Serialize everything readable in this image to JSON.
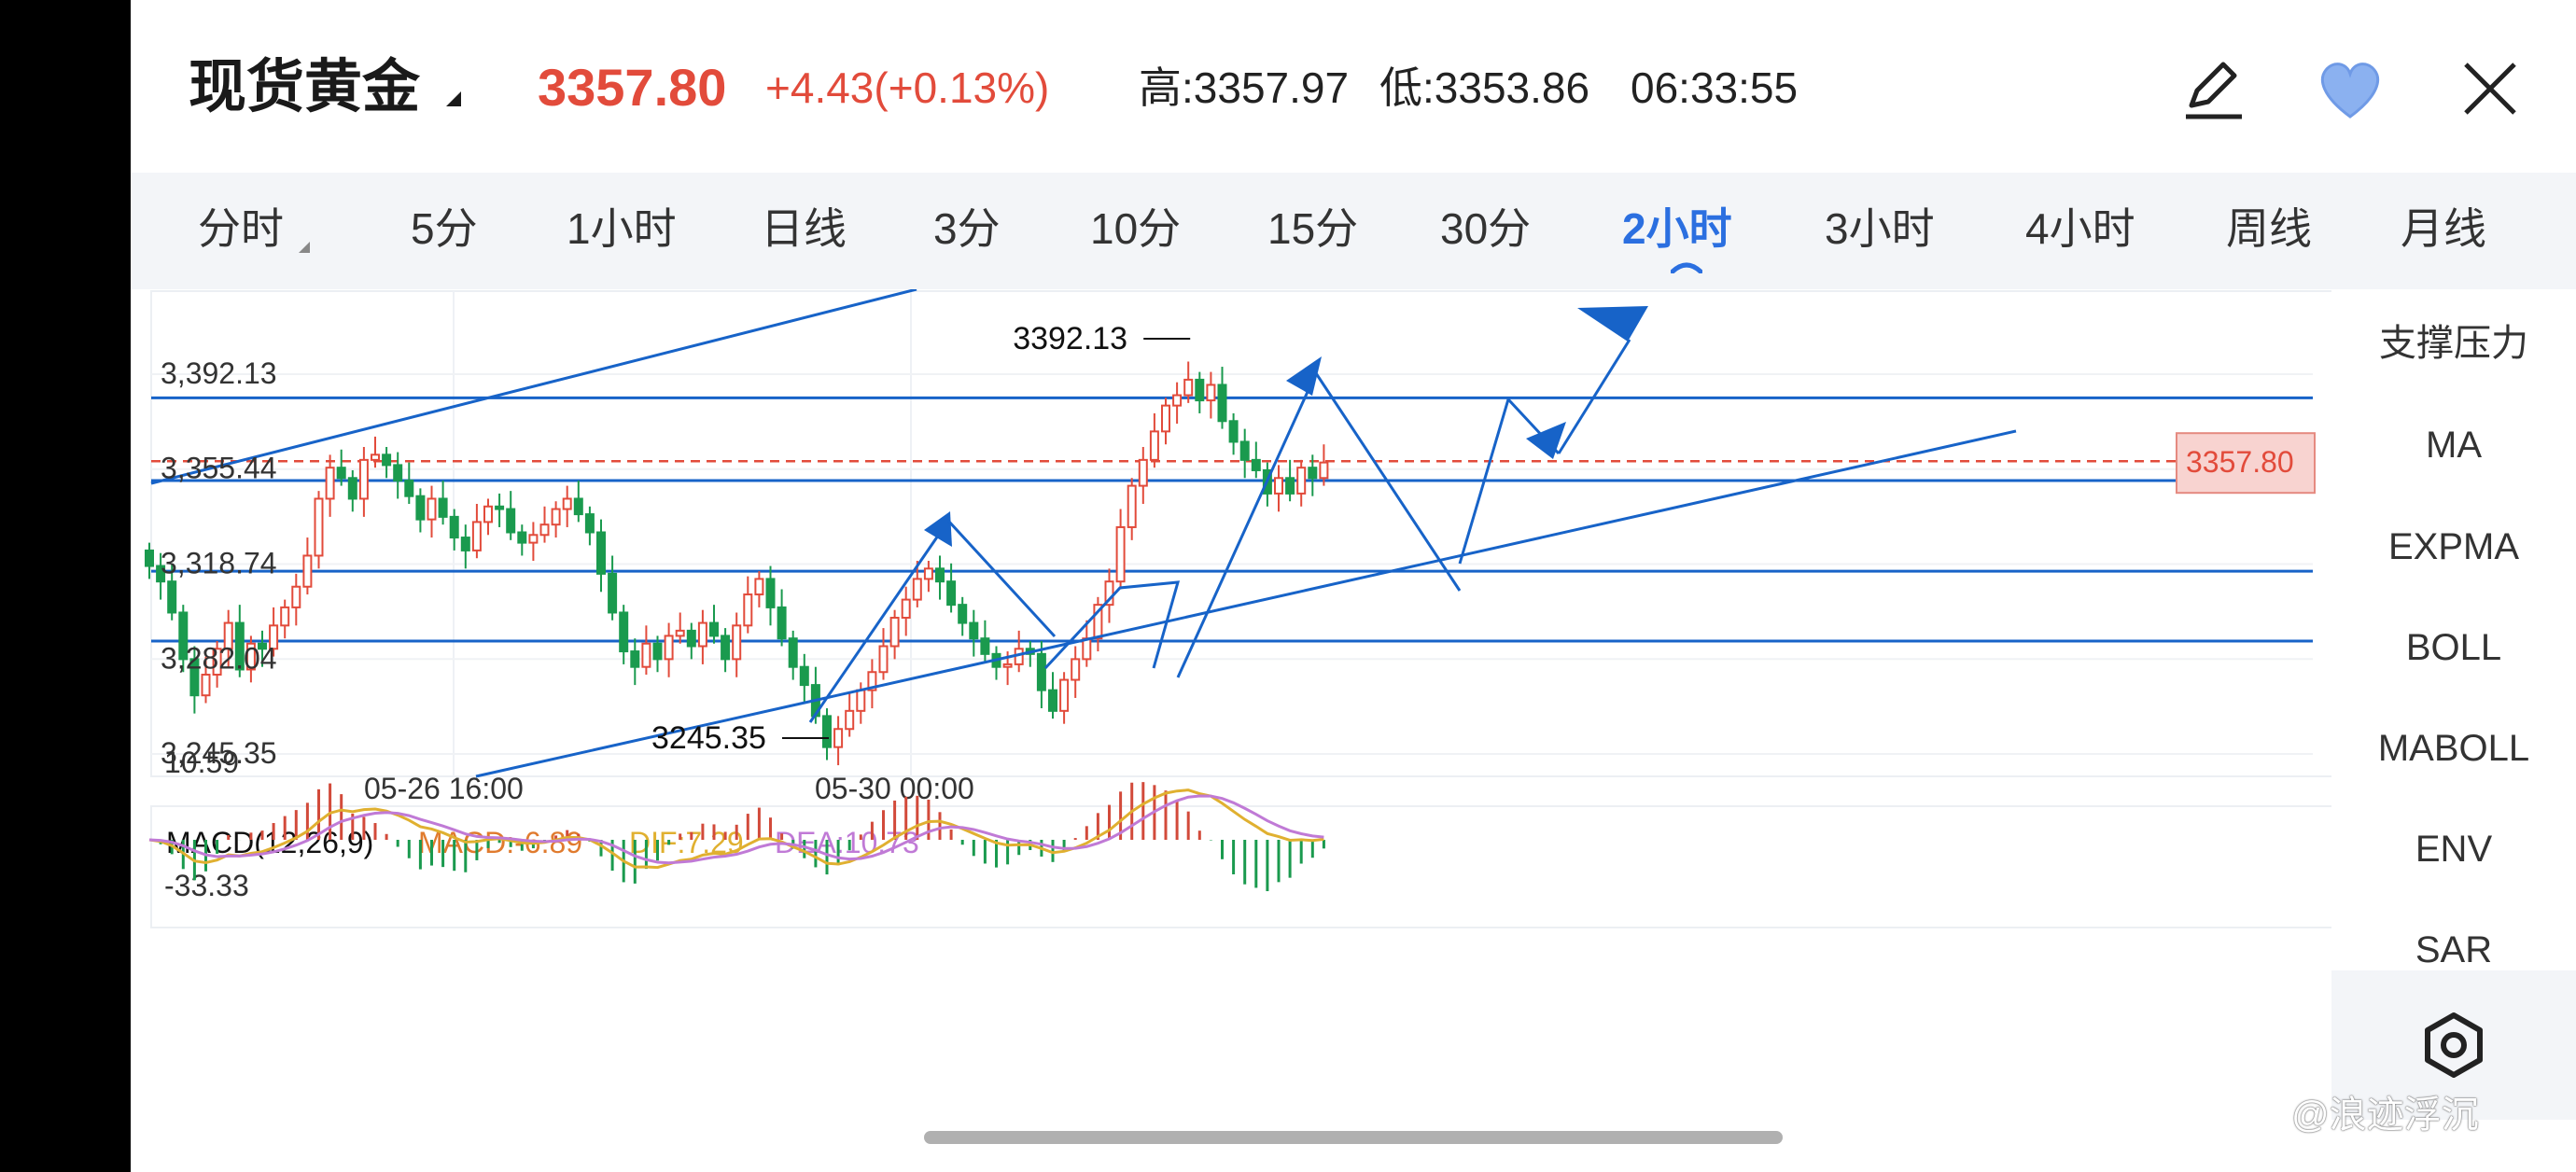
{
  "header": {
    "instrument_name": "现货黄金",
    "last_price": "3357.80",
    "change": "+4.43(+0.13%)",
    "high": "高:3357.97",
    "low": "低:3353.86",
    "time": "06:33:55",
    "icons": [
      "edit-icon",
      "heart-icon",
      "close-icon"
    ],
    "accent_up": "#e24b3b",
    "accent_heart": "#7aa7ef"
  },
  "tabs": [
    {
      "label": "分时",
      "active": false
    },
    {
      "label": "5分",
      "active": false
    },
    {
      "label": "1小时",
      "active": false
    },
    {
      "label": "日线",
      "active": false
    },
    {
      "label": "3分",
      "active": false
    },
    {
      "label": "10分",
      "active": false
    },
    {
      "label": "15分",
      "active": false
    },
    {
      "label": "30分",
      "active": false
    },
    {
      "label": "2小时",
      "active": true
    },
    {
      "label": "3小时",
      "active": false
    },
    {
      "label": "4小时",
      "active": false
    },
    {
      "label": "周线",
      "active": false
    },
    {
      "label": "月线",
      "active": false
    }
  ],
  "active_tab_color": "#2b6fe0",
  "indicators": {
    "items": [
      "支撑压力",
      "MA",
      "EXPMA",
      "BOLL",
      "MABOLL",
      "ENV",
      "SAR"
    ],
    "settings_icon": "hexagon-settings-icon"
  },
  "watermark": "@浪迹浮沉",
  "chart_data": [
    {
      "type": "candlestick",
      "ylim": [
        3230,
        3410
      ],
      "y_tick_labels": [
        "3,392.13",
        "3,355.44",
        "3,318.74",
        "3,282.04",
        "3,245.35"
      ],
      "y_ticks": [
        3392.13,
        3355.44,
        3318.74,
        3282.04,
        3245.35
      ],
      "x_tick_labels": [
        "05-26 16:00",
        "05-30 00:00"
      ],
      "current_price_label": "3357.80",
      "current_price": 3357.8,
      "max_label": "3392.13",
      "min_label": "3245.35",
      "up_color": "#e24b3b",
      "down_color": "#1a9a4e",
      "annotation_color": "#1763c8",
      "horizontal_levels": [
        3383,
        3351,
        3316,
        3289
      ],
      "closes": [
        3318,
        3312,
        3300,
        3282,
        3268,
        3276,
        3286,
        3296,
        3278,
        3288,
        3286,
        3295,
        3302,
        3310,
        3322,
        3344,
        3356,
        3352,
        3344,
        3359,
        3361,
        3357,
        3351,
        3345,
        3336,
        3344,
        3337,
        3329,
        3324,
        3335,
        3341,
        3340,
        3331,
        3327,
        3330,
        3334,
        3340,
        3344,
        3338,
        3331,
        3315,
        3300,
        3285,
        3279,
        3288,
        3282,
        3291,
        3293,
        3287,
        3296,
        3291,
        3282,
        3295,
        3307,
        3313,
        3302,
        3290,
        3279,
        3272,
        3260,
        3248,
        3255,
        3262,
        3270,
        3277,
        3287,
        3298,
        3305,
        3313,
        3317,
        3312,
        3303,
        3296,
        3290,
        3284,
        3279,
        3280,
        3286,
        3284,
        3270,
        3262,
        3274,
        3282,
        3290,
        3303,
        3312,
        3333,
        3349,
        3359,
        3370,
        3380,
        3384,
        3390,
        3382,
        3388,
        3374,
        3366,
        3359,
        3355,
        3346,
        3352,
        3346,
        3356,
        3352,
        3358
      ],
      "open": 3324
    },
    {
      "type": "macd",
      "title": "MACD(12,26,9)",
      "macd_label": "MACD:-6.89",
      "dif_label": "DIF:7.29",
      "dea_label": "DEA:10.73",
      "y_tick_labels": [
        "10.59",
        "-33.33"
      ],
      "ylim": [
        -45,
        25
      ],
      "macd_color": "#e07b2e",
      "dif_color": "#e0b030",
      "dea_color": "#c07ad6"
    }
  ]
}
